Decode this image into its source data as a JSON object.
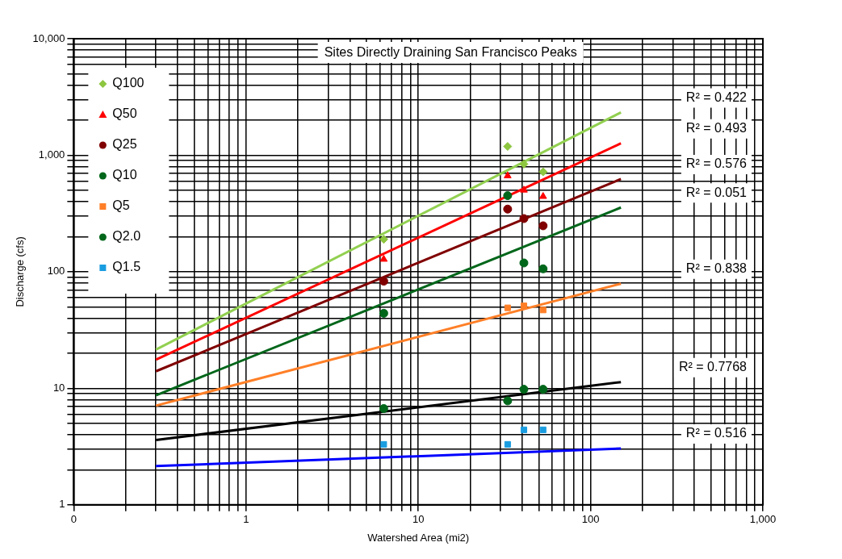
{
  "chart_data": {
    "type": "scatter",
    "title": "Sites Directly Draining San Francisco Peaks",
    "xlabel": "Watershed Area (mi2)",
    "ylabel": "Discharge (cfs)",
    "log": "xy",
    "grid": true,
    "legend": "top left",
    "xlim": [
      0.1,
      1000
    ],
    "xticks": [
      {
        "value": 0.1,
        "label": "0"
      },
      1,
      10,
      100,
      {
        "value": 1000,
        "label": "1,000"
      }
    ],
    "ylim": [
      1,
      10000
    ],
    "yticks": [
      1,
      10,
      100,
      {
        "value": 1000,
        "label": "1,000"
      },
      {
        "value": 10000,
        "label": "10,000"
      }
    ],
    "annotations": [
      "R² = 0.422",
      "R² = 0.493",
      "R² = 0.576",
      "R² = 0.051",
      "R² = 0.838",
      "R² = 0.7768",
      "R² = 0.516"
    ],
    "series": [
      {
        "name": "Q100",
        "type": "scatter",
        "marker": "diamond",
        "color": "#8dc63f",
        "x": [
          6.3,
          33,
          41,
          53
        ],
        "values": [
          190,
          1190,
          840,
          720
        ]
      },
      {
        "name": "Q50",
        "type": "scatter",
        "marker": "triangle",
        "color": "#ff0000",
        "x": [
          6.3,
          33,
          41,
          53
        ],
        "values": [
          128,
          666,
          502,
          443
        ]
      },
      {
        "name": "Q25",
        "type": "scatter",
        "marker": "circle",
        "color": "#800000",
        "x": [
          6.3,
          33,
          41,
          53
        ],
        "values": [
          83,
          345,
          286,
          248
        ]
      },
      {
        "name": "Q10",
        "type": "scatter",
        "marker": "circle",
        "color": "#00661a",
        "x": [
          6.3,
          33,
          41,
          53
        ],
        "values": [
          44,
          450,
          119,
          106
        ]
      },
      {
        "name": "Q5",
        "type": "scatter",
        "marker": "square",
        "color": "#ff7f27",
        "x": [
          33,
          41,
          53
        ],
        "values": [
          49,
          51,
          47
        ]
      },
      {
        "name": "Q2.0",
        "type": "scatter",
        "marker": "circle",
        "color": "#00661a",
        "x": [
          6.3,
          33,
          41,
          53
        ],
        "values": [
          6.7,
          7.8,
          9.8,
          9.8
        ]
      },
      {
        "name": "Q1.5",
        "type": "scatter",
        "marker": "square",
        "color": "#1a9de0",
        "x": [
          6.3,
          33,
          41,
          53
        ],
        "values": [
          3.3,
          3.3,
          4.4,
          4.4
        ]
      },
      {
        "type": "line",
        "marker": "none",
        "color": "#92d050",
        "x": [
          0.3,
          150
        ],
        "values": [
          21.5,
          2330
        ]
      },
      {
        "type": "line",
        "marker": "none",
        "color": "#ff0000",
        "x": [
          0.3,
          150
        ],
        "values": [
          17.6,
          1265
        ]
      },
      {
        "type": "line",
        "marker": "none",
        "color": "#800000",
        "x": [
          0.3,
          150
        ],
        "values": [
          14,
          625
        ]
      },
      {
        "type": "line",
        "marker": "none",
        "color": "#00661a",
        "x": [
          0.3,
          150
        ],
        "values": [
          8.7,
          356
        ]
      },
      {
        "type": "line",
        "marker": "none",
        "color": "#ff7f27",
        "x": [
          0.3,
          150
        ],
        "values": [
          7.1,
          79
        ]
      },
      {
        "type": "line",
        "marker": "none",
        "color": "#000000",
        "x": [
          0.3,
          150
        ],
        "values": [
          3.6,
          11.3
        ]
      },
      {
        "type": "line",
        "marker": "none",
        "color": "#0000ff",
        "x": [
          0.3,
          150
        ],
        "values": [
          2.15,
          3.04
        ]
      }
    ]
  }
}
